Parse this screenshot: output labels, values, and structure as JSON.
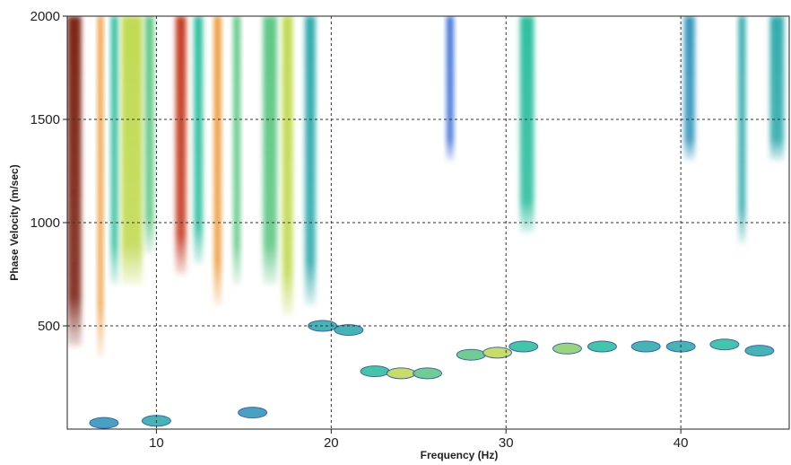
{
  "chart_data": {
    "type": "dispersion",
    "x_label": "Frequency (Hz)",
    "y_label": "Phase Velocity (m/sec)",
    "xlim": [
      4.9,
      46.2
    ],
    "ylim": [
      0,
      2000
    ],
    "xticks": [
      10,
      20,
      30,
      40
    ],
    "yticks": [
      500,
      1000,
      1500,
      2000
    ],
    "grid": true,
    "colormap": [
      "#ffffff",
      "#3a6fd8",
      "#2fbf9f",
      "#f2e33a",
      "#e84a2a",
      "#5a1a10"
    ],
    "streaks": {
      "x": [
        5.3,
        6.8,
        7.6,
        8.6,
        9.6,
        11.4,
        12.4,
        13.5,
        14.6,
        16.5,
        17.5,
        18.8,
        26.8,
        31.2,
        40.5,
        43.5,
        45.5
      ],
      "width": [
        0.8,
        0.3,
        0.4,
        1.2,
        0.5,
        0.6,
        0.5,
        0.4,
        0.4,
        0.8,
        0.6,
        0.6,
        0.4,
        0.8,
        0.6,
        0.4,
        0.8
      ],
      "ymin": [
        400,
        350,
        700,
        700,
        850,
        750,
        800,
        600,
        700,
        700,
        550,
        600,
        1300,
        950,
        1300,
        900,
        1300
      ],
      "ymax": [
        2000,
        2000,
        2000,
        2000,
        2000,
        2000,
        2000,
        2000,
        2000,
        2000,
        2000,
        2000,
        2000,
        2000,
        2000,
        2000,
        2000
      ],
      "intensity": [
        0.95,
        0.7,
        0.4,
        0.55,
        0.45,
        0.85,
        0.4,
        0.7,
        0.45,
        0.45,
        0.55,
        0.35,
        0.2,
        0.4,
        0.3,
        0.35,
        0.35
      ]
    },
    "blobs": {
      "x": [
        19.5,
        21,
        22.5,
        24,
        25.5,
        28,
        29.5,
        31,
        33.5,
        35.5,
        38,
        40,
        42.5,
        44.5,
        15.5,
        10,
        7
      ],
      "y": [
        500,
        480,
        280,
        270,
        270,
        360,
        370,
        400,
        390,
        400,
        400,
        400,
        410,
        380,
        80,
        40,
        30
      ],
      "intensity": [
        0.35,
        0.35,
        0.4,
        0.55,
        0.45,
        0.45,
        0.55,
        0.4,
        0.5,
        0.4,
        0.35,
        0.35,
        0.4,
        0.35,
        0.3,
        0.35,
        0.3
      ]
    }
  }
}
